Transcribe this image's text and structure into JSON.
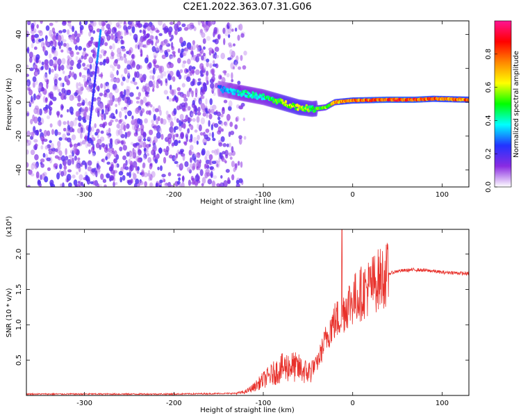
{
  "title": "C2E1.2022.363.07.31.G06",
  "chart_data": [
    {
      "type": "heatmap",
      "title": "",
      "xlabel": "Height of straight line (km)",
      "ylabel": "Frequency (Hz)",
      "xlim": [
        -365,
        130
      ],
      "ylim": [
        -50,
        48
      ],
      "xticks": [
        -300,
        -200,
        -100,
        0,
        100
      ],
      "yticks": [
        -40,
        -20,
        0,
        20,
        40
      ],
      "colorbar": {
        "label": "Normalized spectral amplitude",
        "ticks": [
          "0.0",
          "0.2",
          "0.4",
          "0.6",
          "0.8"
        ],
        "range": [
          0,
          1
        ],
        "colormap": [
          "#ffffff",
          "#8a2be2",
          "#2233ff",
          "#00ffff",
          "#00ff00",
          "#ffff00",
          "#ff8800",
          "#ff0000",
          "#ff1493"
        ]
      },
      "features": {
        "noise_region_x": [
          -365,
          -120
        ],
        "noise_amplitude": 0.2,
        "signal_track": [
          {
            "x": -150,
            "y": 8,
            "amp": 0.3
          },
          {
            "x": -120,
            "y": 5,
            "amp": 0.45
          },
          {
            "x": -100,
            "y": 3,
            "amp": 0.45
          },
          {
            "x": -80,
            "y": 0,
            "amp": 0.6
          },
          {
            "x": -60,
            "y": -3,
            "amp": 0.65
          },
          {
            "x": -45,
            "y": -4,
            "amp": 0.55
          },
          {
            "x": -30,
            "y": -3,
            "amp": 0.6
          },
          {
            "x": -20,
            "y": 0,
            "amp": 0.75
          },
          {
            "x": 0,
            "y": 1,
            "amp": 0.85
          },
          {
            "x": 40,
            "y": 1.5,
            "amp": 0.9
          },
          {
            "x": 70,
            "y": 1.5,
            "amp": 0.9
          },
          {
            "x": 90,
            "y": 2,
            "amp": 0.85
          },
          {
            "x": 130,
            "y": 1.5,
            "amp": 0.85
          }
        ]
      }
    },
    {
      "type": "line",
      "title": "",
      "xlabel": "Height of straight line (km)",
      "ylabel": "SNR (10 * v/v)",
      "yscale_label": "(x10⁴)",
      "xlim": [
        -365,
        130
      ],
      "ylim": [
        0,
        2.35
      ],
      "xticks": [
        -300,
        -200,
        -100,
        0,
        100
      ],
      "yticks": [
        0.5,
        1.0,
        1.5,
        2.0
      ],
      "series": [
        {
          "color": "#e8302a",
          "x": [
            -365,
            -200,
            -130,
            -120,
            -110,
            -100,
            -90,
            -80,
            -70,
            -60,
            -50,
            -40,
            -35,
            -30,
            -25,
            -20,
            -15,
            -10,
            -5,
            0,
            10,
            20,
            30,
            40,
            50,
            60,
            70,
            80,
            90,
            100,
            110,
            120,
            130
          ],
          "y": [
            0.02,
            0.02,
            0.03,
            0.05,
            0.12,
            0.22,
            0.3,
            0.38,
            0.42,
            0.38,
            0.32,
            0.45,
            0.62,
            0.8,
            0.95,
            1.05,
            1.1,
            1.2,
            1.3,
            1.35,
            1.45,
            1.55,
            1.65,
            1.72,
            1.76,
            1.77,
            1.78,
            1.77,
            1.76,
            1.74,
            1.74,
            1.73,
            1.72
          ]
        }
      ]
    }
  ]
}
